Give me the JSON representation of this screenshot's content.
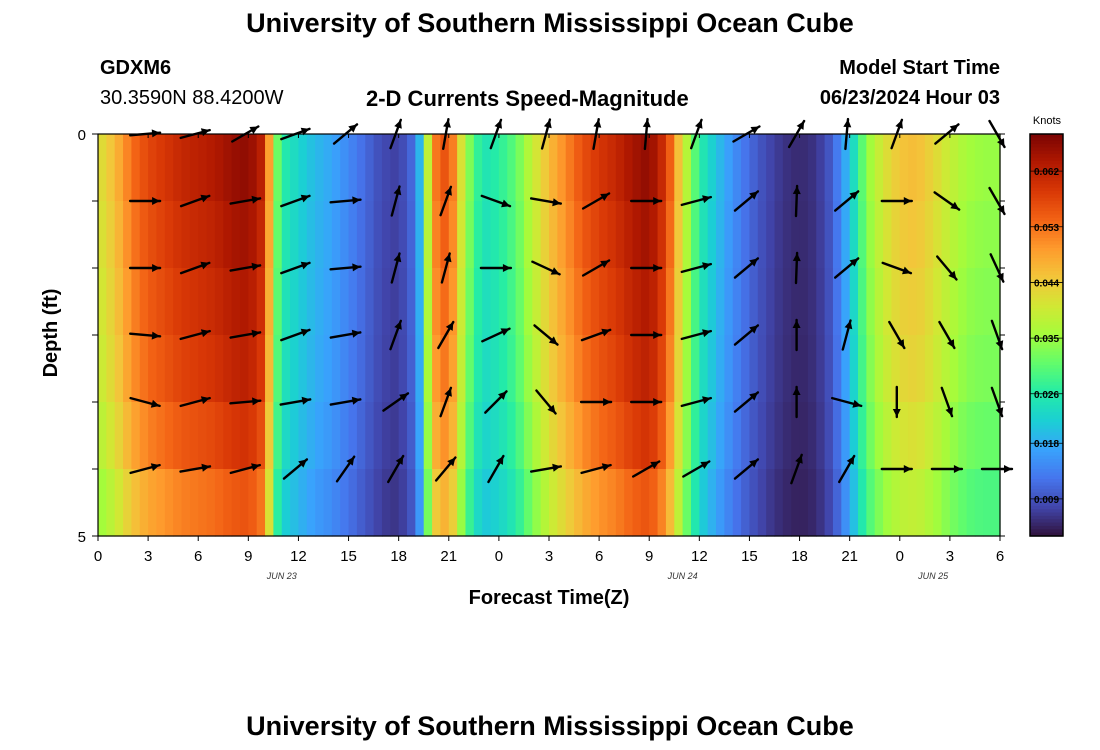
{
  "header": {
    "title": "University of Southern Mississippi Ocean Cube",
    "station": "GDXM6",
    "coords": "30.3590N  88.4200W",
    "chart_title": "2-D Currents Speed-Magnitude",
    "model_label": "Model Start Time",
    "model_time": "06/23/2024 Hour 03"
  },
  "footer": {
    "title": "University of Southern Mississippi Ocean Cube"
  },
  "chart_data": {
    "type": "heatmap",
    "title": "2-D Currents Speed-Magnitude",
    "xlabel": "Forecast Time(Z)",
    "ylabel": "Depth (ft)",
    "x_tick_labels": [
      "0",
      "3",
      "6",
      "9",
      "12",
      "15",
      "18",
      "21",
      "0",
      "3",
      "6",
      "9",
      "12",
      "15",
      "18",
      "21",
      "0",
      "3",
      "6"
    ],
    "date_labels": [
      {
        "label": "JUN 23",
        "at_hour": 11
      },
      {
        "label": "JUN 24",
        "at_hour": 35
      },
      {
        "label": "JUN 25",
        "at_hour": 50
      }
    ],
    "y_tick_labels": [
      "0",
      "5"
    ],
    "ylim": [
      0,
      5
    ],
    "xlim_hours": [
      0,
      54
    ],
    "colorbar": {
      "unit": "Knots",
      "min": 0.003,
      "max": 0.068,
      "ticks": [
        "0.062",
        "0.053",
        "0.044",
        "0.035",
        "0.026",
        "0.018",
        "0.009"
      ],
      "tick_values": [
        0.062,
        0.053,
        0.044,
        0.035,
        0.026,
        0.018,
        0.009
      ]
    },
    "speed_profile_hours": [
      0,
      1,
      2,
      3,
      4,
      5,
      6,
      7,
      8,
      9,
      10,
      10.5,
      11,
      12,
      13,
      14,
      15,
      16,
      17,
      18,
      19,
      19.5,
      20,
      21,
      22,
      23,
      24,
      25,
      26,
      27,
      28,
      29,
      30,
      31,
      32,
      33,
      34,
      35,
      36,
      37,
      38,
      39,
      40,
      41,
      42,
      43,
      44,
      45,
      46,
      47,
      48,
      49,
      50,
      51,
      52,
      53,
      54
    ],
    "speed_profile_knots": [
      0.04,
      0.045,
      0.052,
      0.056,
      0.058,
      0.06,
      0.061,
      0.062,
      0.064,
      0.065,
      0.06,
      0.036,
      0.026,
      0.022,
      0.019,
      0.017,
      0.014,
      0.011,
      0.008,
      0.007,
      0.012,
      0.025,
      0.05,
      0.056,
      0.035,
      0.024,
      0.026,
      0.03,
      0.038,
      0.045,
      0.05,
      0.055,
      0.058,
      0.06,
      0.063,
      0.065,
      0.058,
      0.04,
      0.026,
      0.02,
      0.015,
      0.011,
      0.008,
      0.006,
      0.005,
      0.006,
      0.01,
      0.02,
      0.033,
      0.04,
      0.044,
      0.045,
      0.042,
      0.038,
      0.035,
      0.034,
      0.034
    ],
    "depth_rows_ft": [
      0,
      1,
      2,
      3,
      4,
      5
    ],
    "depth_speed_factor": [
      1.02,
      1.0,
      0.98,
      0.96,
      0.92,
      0.86
    ],
    "vector_times_hours": [
      3,
      6,
      9,
      12,
      15,
      18,
      21,
      24,
      27,
      30,
      33,
      36,
      39,
      42,
      45,
      48,
      51,
      54
    ],
    "vector_direction_deg": [
      [
        5,
        15,
        30,
        20,
        40,
        70,
        80,
        70,
        75,
        80,
        85,
        70,
        30,
        60,
        85,
        70,
        40,
        -60
      ],
      [
        0,
        20,
        10,
        20,
        5,
        75,
        70,
        -20,
        -10,
        30,
        0,
        15,
        40,
        88,
        40,
        0,
        -35,
        -60
      ],
      [
        0,
        20,
        10,
        20,
        5,
        75,
        75,
        0,
        -25,
        30,
        0,
        15,
        40,
        88,
        40,
        -20,
        -50,
        -65
      ],
      [
        -5,
        15,
        10,
        20,
        10,
        70,
        60,
        25,
        -40,
        20,
        0,
        15,
        40,
        90,
        75,
        -60,
        -60,
        -70
      ],
      [
        -15,
        15,
        5,
        10,
        10,
        35,
        70,
        45,
        -50,
        0,
        0,
        15,
        40,
        90,
        -15,
        -90,
        -70,
        -70
      ],
      [
        15,
        10,
        15,
        40,
        55,
        60,
        50,
        60,
        10,
        15,
        30,
        30,
        40,
        70,
        60,
        0,
        0,
        0
      ]
    ],
    "vector_speed_knots": [
      [
        0.04,
        0.052,
        0.058,
        0.061,
        0.064,
        0.03,
        0.018,
        0.01,
        0.02,
        0.03,
        0.05,
        0.056,
        0.062,
        0.028,
        0.014,
        0.006,
        0.012,
        0.04
      ],
      [
        0.046,
        0.054,
        0.058,
        0.061,
        0.063,
        0.028,
        0.017,
        0.009,
        0.022,
        0.028,
        0.05,
        0.055,
        0.06,
        0.026,
        0.012,
        0.005,
        0.04,
        0.038
      ],
      [
        0.045,
        0.053,
        0.057,
        0.06,
        0.062,
        0.027,
        0.017,
        0.009,
        0.022,
        0.028,
        0.048,
        0.054,
        0.058,
        0.026,
        0.012,
        0.005,
        0.04,
        0.037
      ],
      [
        0.044,
        0.052,
        0.056,
        0.059,
        0.061,
        0.026,
        0.016,
        0.009,
        0.022,
        0.028,
        0.048,
        0.053,
        0.057,
        0.025,
        0.011,
        0.005,
        0.038,
        0.036
      ],
      [
        0.04,
        0.048,
        0.052,
        0.055,
        0.058,
        0.024,
        0.015,
        0.008,
        0.02,
        0.026,
        0.045,
        0.05,
        0.054,
        0.023,
        0.01,
        0.005,
        0.035,
        0.034
      ],
      [
        0.038,
        0.044,
        0.048,
        0.05,
        0.054,
        0.022,
        0.014,
        0.008,
        0.018,
        0.024,
        0.042,
        0.047,
        0.05,
        0.022,
        0.009,
        0.005,
        0.034,
        0.032
      ]
    ]
  },
  "colors": {
    "scale": [
      "#30123b",
      "#4145ab",
      "#4675ed",
      "#39a2fc",
      "#1bcfd4",
      "#24eca6",
      "#61fc6c",
      "#a4fc3b",
      "#d1e834",
      "#f3c63a",
      "#fe9b2d",
      "#f36315",
      "#d93806",
      "#b11901",
      "#7a0403"
    ],
    "arrow": "#000000"
  }
}
